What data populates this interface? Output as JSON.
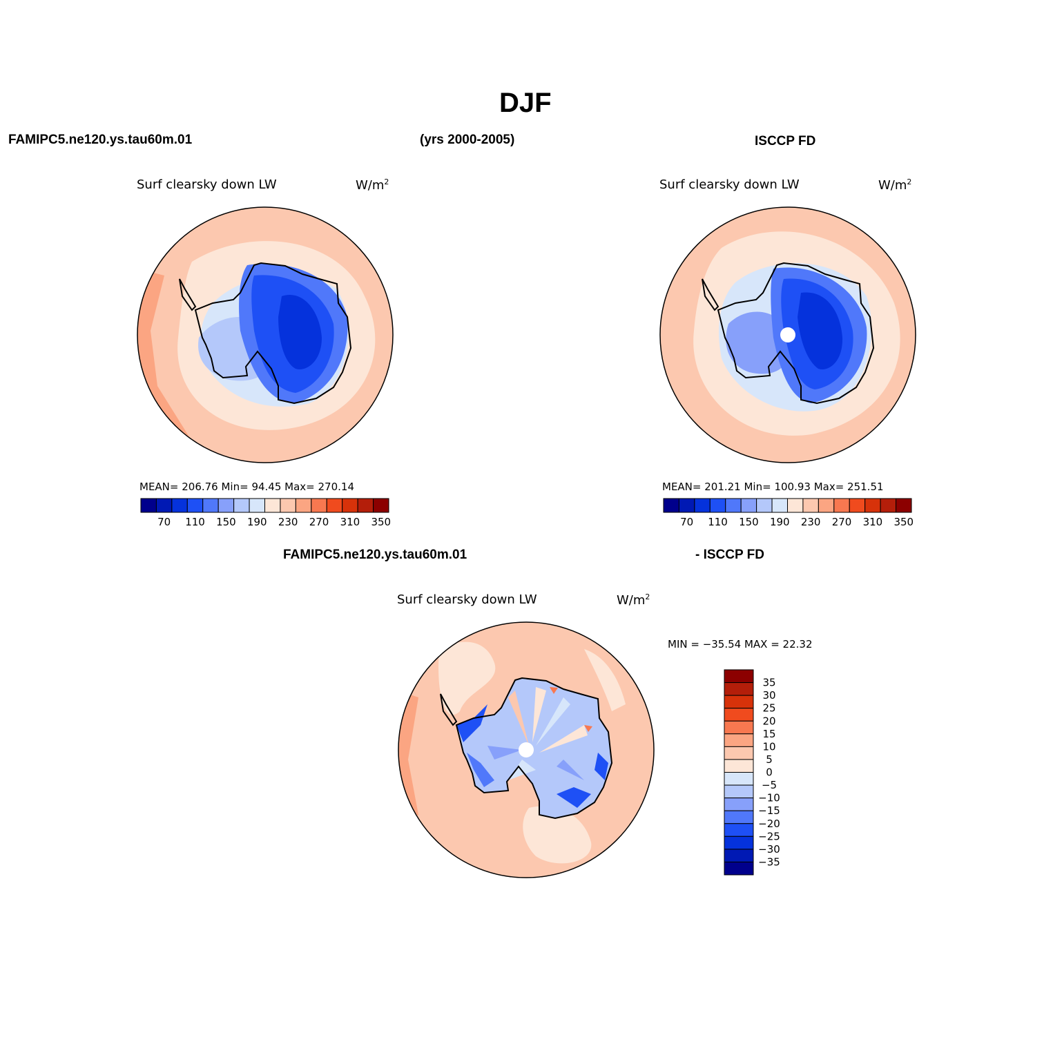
{
  "title": "DJF",
  "header": {
    "model": "FAMIPC5.ne120.ys.tau60m.01",
    "years": "(yrs 2000-2005)",
    "obs": "ISCCP FD",
    "diff_model": "FAMIPC5.ne120.ys.tau60m.01",
    "diff_obs": "- ISCCP FD"
  },
  "panels": {
    "model": {
      "variable": "Surf clearsky down LW",
      "units_base": "W/m",
      "units_sup": "2",
      "stats": "MEAN= 206.76   Min=   94.45   Max= 270.14",
      "colorbar_ticks": [
        "70",
        "110",
        "150",
        "190",
        "230",
        "270",
        "310",
        "350"
      ]
    },
    "obs": {
      "variable": "Surf clearsky down LW",
      "units_base": "W/m",
      "units_sup": "2",
      "stats": "MEAN= 201.21   Min= 100.93   Max= 251.51",
      "colorbar_ticks": [
        "70",
        "110",
        "150",
        "190",
        "230",
        "270",
        "310",
        "350"
      ]
    },
    "diff": {
      "variable": "Surf clearsky down LW",
      "units_base": "W/m",
      "units_sup": "2",
      "stats": "MIN = −35.54  MAX =   22.32",
      "colorbar_ticks": [
        "35",
        "30",
        "25",
        "20",
        "15",
        "10",
        "5",
        "0",
        "−5",
        "−10",
        "−15",
        "−20",
        "−25",
        "−30",
        "−35"
      ]
    }
  },
  "colors": {
    "scale": [
      "#00008c",
      "#0019b4",
      "#0532dc",
      "#1e50f5",
      "#5078fa",
      "#87a0fa",
      "#b4c8fa",
      "#d7e6fa",
      "#fde6d7",
      "#fcc8af",
      "#fba582",
      "#f87850",
      "#f04b1e",
      "#d7320a",
      "#b41e0a",
      "#8c0000"
    ],
    "ocean_outer": "#fcc8af",
    "ocean_inner": "#fde6d7",
    "edge": "#fba582",
    "ice_dark": "#0532dc",
    "ice_mid": "#1e50f5",
    "ice_light": "#5078fa",
    "shelf": "#b4c8fa",
    "shelf_light": "#d7e6fa"
  }
}
